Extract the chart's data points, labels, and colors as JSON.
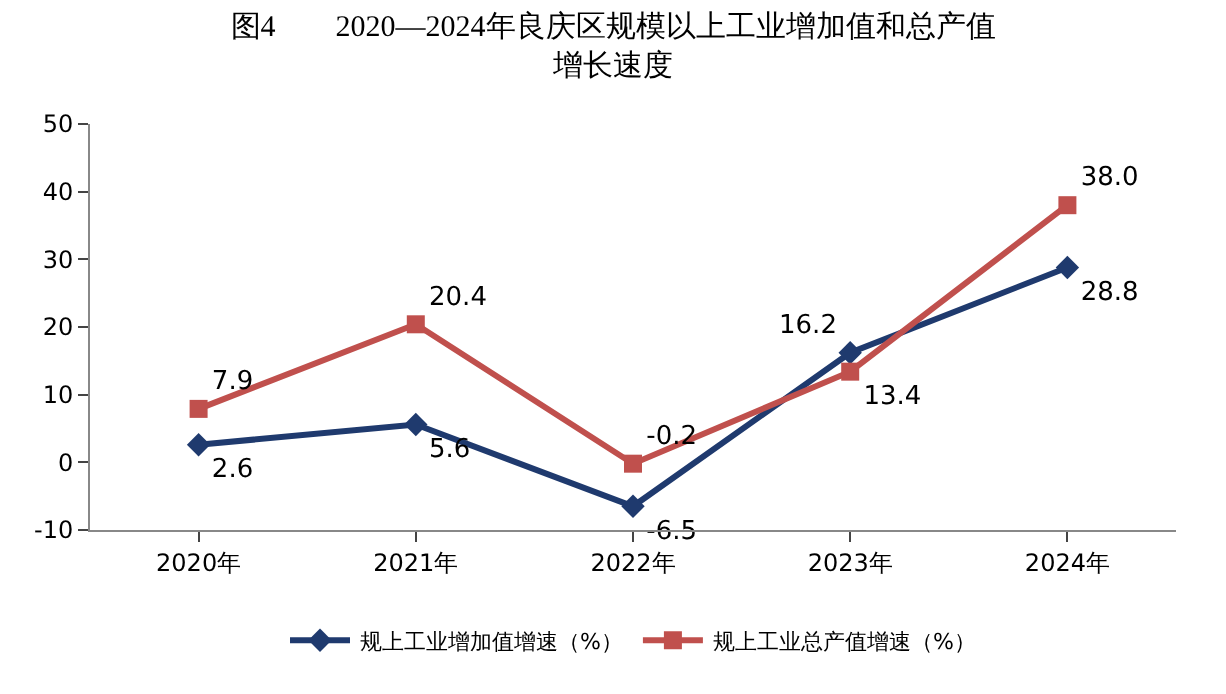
{
  "chart_data": {
    "type": "line",
    "title": "图4　　2020—2024年良庆区规模以上工业增加值和总产值增长速度",
    "categories": [
      "2020年",
      "2021年",
      "2022年",
      "2023年",
      "2024年"
    ],
    "series": [
      {
        "name": "规上工业增加值增速（%）",
        "color": "#1f3a6e",
        "marker": "diamond",
        "values": [
          2.6,
          5.6,
          -6.5,
          16.2,
          28.8
        ],
        "value_labels": [
          "2.6",
          "5.6",
          "-6.5",
          "16.2",
          "28.8"
        ]
      },
      {
        "name": "规上工业总产值增速（%）",
        "color": "#c0504d",
        "marker": "square",
        "values": [
          7.9,
          20.4,
          -0.2,
          13.4,
          38.0
        ],
        "value_labels": [
          "7.9",
          "20.4",
          "-0.2",
          "13.4",
          "38.0"
        ]
      }
    ],
    "ylim": [
      -10,
      50
    ],
    "yticks": [
      -10,
      0,
      10,
      20,
      30,
      40,
      50
    ],
    "legend": "bottom",
    "line_style": "solid"
  }
}
